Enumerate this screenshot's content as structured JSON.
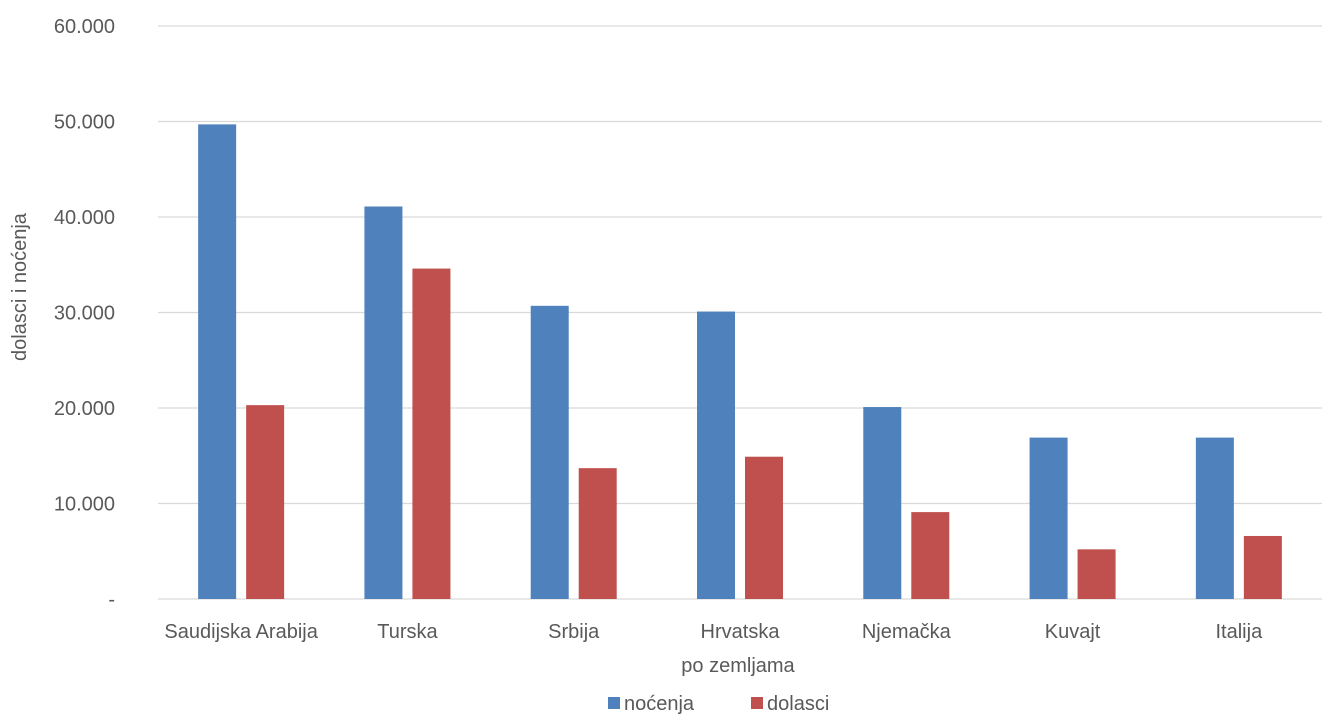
{
  "chart_data": {
    "type": "bar",
    "categories": [
      "Saudijska Arabija",
      "Turska",
      "Srbija",
      "Hrvatska",
      "Njemačka",
      "Kuvajt",
      "Italija"
    ],
    "series": [
      {
        "name": "noćenja",
        "color": "#4f81bd",
        "values": [
          49700,
          41100,
          30700,
          30100,
          20100,
          16900,
          16900
        ]
      },
      {
        "name": "dolasci",
        "color": "#c0504d",
        "values": [
          20300,
          34600,
          13700,
          14900,
          9100,
          5200,
          6600
        ]
      }
    ],
    "xlabel": "po zemljama",
    "ylabel": "dolasci i noćenja",
    "ylim": [
      0,
      60000
    ],
    "y_ticks": [
      0,
      10000,
      20000,
      30000,
      40000,
      50000,
      60000
    ],
    "y_tick_labels": [
      "-",
      "10.000",
      "20.000",
      "30.000",
      "40.000",
      "50.000",
      "60.000"
    ],
    "grid": true,
    "legend_position": "bottom"
  }
}
